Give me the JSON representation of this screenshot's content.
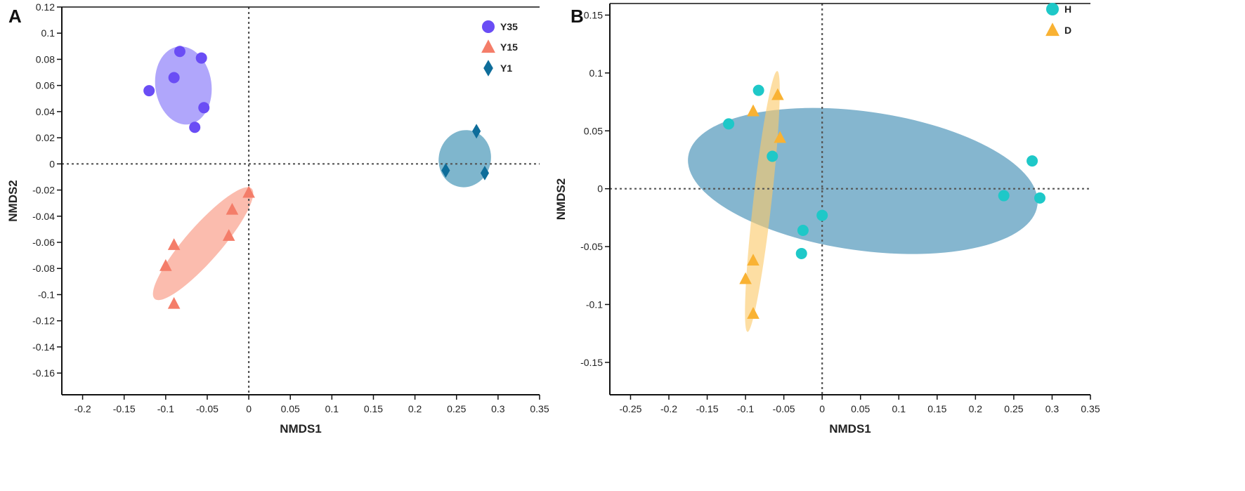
{
  "chart_data": [
    {
      "panel_label": "A",
      "type": "scatter",
      "xlabel": "NMDS1",
      "ylabel": "NMDS2",
      "xlim": [
        -0.225,
        0.35
      ],
      "ylim": [
        -0.1766,
        0.12
      ],
      "xticks": [
        "-0.2",
        "-0.15",
        "-0.1",
        "-0.05",
        "0",
        "0.05",
        "0.1",
        "0.15",
        "0.2",
        "0.25",
        "0.3",
        "0.35"
      ],
      "yticks": [
        "0.12",
        "0.1",
        "0.08",
        "0.06",
        "0.04",
        "0.02",
        "0",
        "-0.02",
        "-0.04",
        "-0.06",
        "-0.08",
        "-0.1",
        "-0.12",
        "-0.14",
        "-0.16"
      ],
      "reference_lines": {
        "x": 0,
        "y": 0,
        "style": "dotted"
      },
      "grid": false,
      "legend_position": "top-right",
      "series": [
        {
          "name": "Y35",
          "marker": "circle",
          "color": "#6a4df5",
          "ellipse_color": "#b0a6fb",
          "ellipse": {
            "cx": -0.0787,
            "cy": 0.06,
            "rx": 0.0338,
            "ry": 0.03,
            "angle": -8
          },
          "points": [
            [
              -0.12,
              0.056
            ],
            [
              -0.09,
              0.066
            ],
            [
              -0.083,
              0.086
            ],
            [
              -0.057,
              0.081
            ],
            [
              -0.054,
              0.043
            ],
            [
              -0.065,
              0.028
            ]
          ]
        },
        {
          "name": "Y15",
          "marker": "triangle",
          "color": "#f47d69",
          "ellipse_color": "#fbbcae",
          "ellipse": {
            "cx": -0.055,
            "cy": -0.061,
            "rx": 0.0884,
            "ry": 0.0134,
            "angle": -48.8
          },
          "points": [
            [
              0.0,
              -0.022
            ],
            [
              -0.02,
              -0.035
            ],
            [
              -0.024,
              -0.055
            ],
            [
              -0.09,
              -0.062
            ],
            [
              -0.1,
              -0.078
            ],
            [
              -0.09,
              -0.107
            ]
          ]
        },
        {
          "name": "Y1",
          "marker": "diamond",
          "color": "#0e6d9a",
          "ellipse_color": "#7fb6cd",
          "ellipse": {
            "cx": 0.26,
            "cy": 0.004,
            "rx": 0.0313,
            "ry": 0.022,
            "angle": 15
          },
          "points": [
            [
              0.237,
              -0.005
            ],
            [
              0.274,
              0.025
            ],
            [
              0.284,
              -0.007
            ]
          ]
        }
      ]
    },
    {
      "panel_label": "B",
      "type": "scatter",
      "xlabel": "NMDS1",
      "ylabel": "NMDS2",
      "xlim": [
        -0.277,
        0.35
      ],
      "ylim": [
        -0.178,
        0.16
      ],
      "xticks": [
        "-0.25",
        "-0.2",
        "-0.15",
        "-0.1",
        "-0.05",
        "0",
        "0.05",
        "0.1",
        "0.15",
        "0.2",
        "0.25",
        "0.3",
        "0.35"
      ],
      "yticks": [
        "0.15",
        "0.1",
        "0.05",
        "0",
        "-0.05",
        "-0.1",
        "-0.15"
      ],
      "reference_lines": {
        "x": 0,
        "y": 0,
        "style": "dotted"
      },
      "grid": false,
      "legend_position": "top-right",
      "series": [
        {
          "name": "H",
          "marker": "circle",
          "color": "#1ec8c8",
          "ellipse_color": "#85b6cf",
          "ellipse": {
            "cx": 0.053,
            "cy": 0.0067,
            "rx": 0.23,
            "ry": 0.06,
            "angle": 8
          },
          "points": [
            [
              -0.122,
              0.056
            ],
            [
              -0.083,
              0.085
            ],
            [
              -0.065,
              0.028
            ],
            [
              0.0,
              -0.023
            ],
            [
              -0.025,
              -0.036
            ],
            [
              -0.027,
              -0.056
            ],
            [
              0.237,
              -0.006
            ],
            [
              0.274,
              0.024
            ],
            [
              0.284,
              -0.008
            ]
          ]
        },
        {
          "name": "D",
          "marker": "triangle",
          "color": "#f9b233",
          "ellipse_color": "#fbc96a",
          "ellipse": {
            "cx": -0.078,
            "cy": -0.011,
            "rx": 0.0119,
            "ry": 0.1134,
            "angle": 6.5
          },
          "points": [
            [
              -0.09,
              0.067
            ],
            [
              -0.058,
              0.081
            ],
            [
              -0.055,
              0.044
            ],
            [
              -0.09,
              -0.062
            ],
            [
              -0.1,
              -0.078
            ],
            [
              -0.09,
              -0.108
            ]
          ]
        }
      ]
    }
  ]
}
